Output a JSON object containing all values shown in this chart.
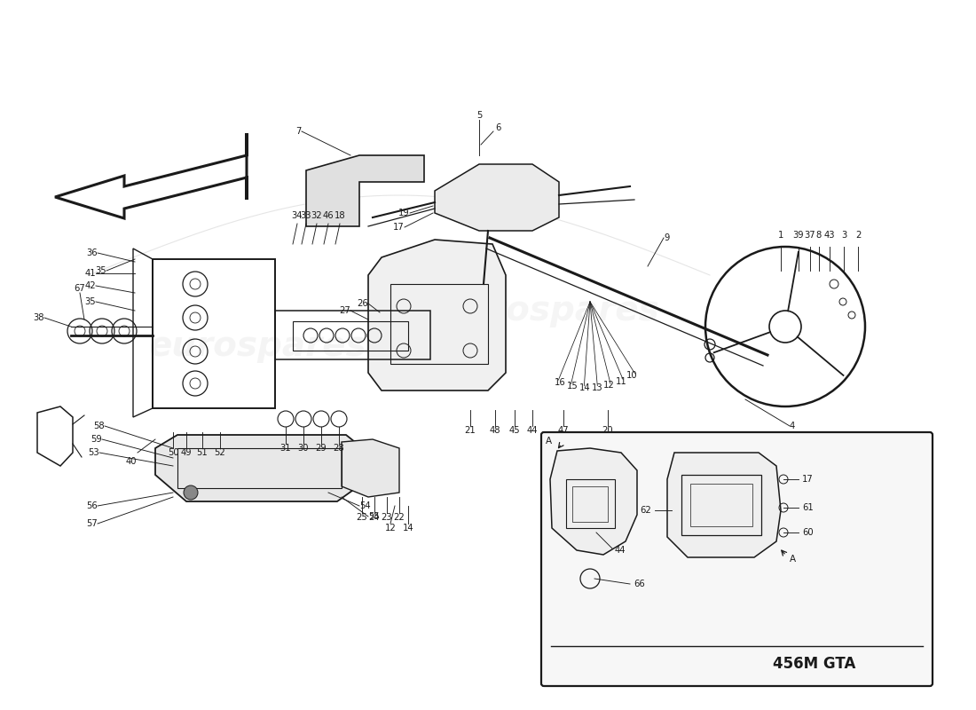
{
  "bg_color": "#ffffff",
  "line_color": "#1a1a1a",
  "wm_color": "#cccccc",
  "wm_text": "eurospares",
  "fig_w": 11.0,
  "fig_h": 8.0,
  "dpi": 100,
  "inset_label": "456M GTA"
}
